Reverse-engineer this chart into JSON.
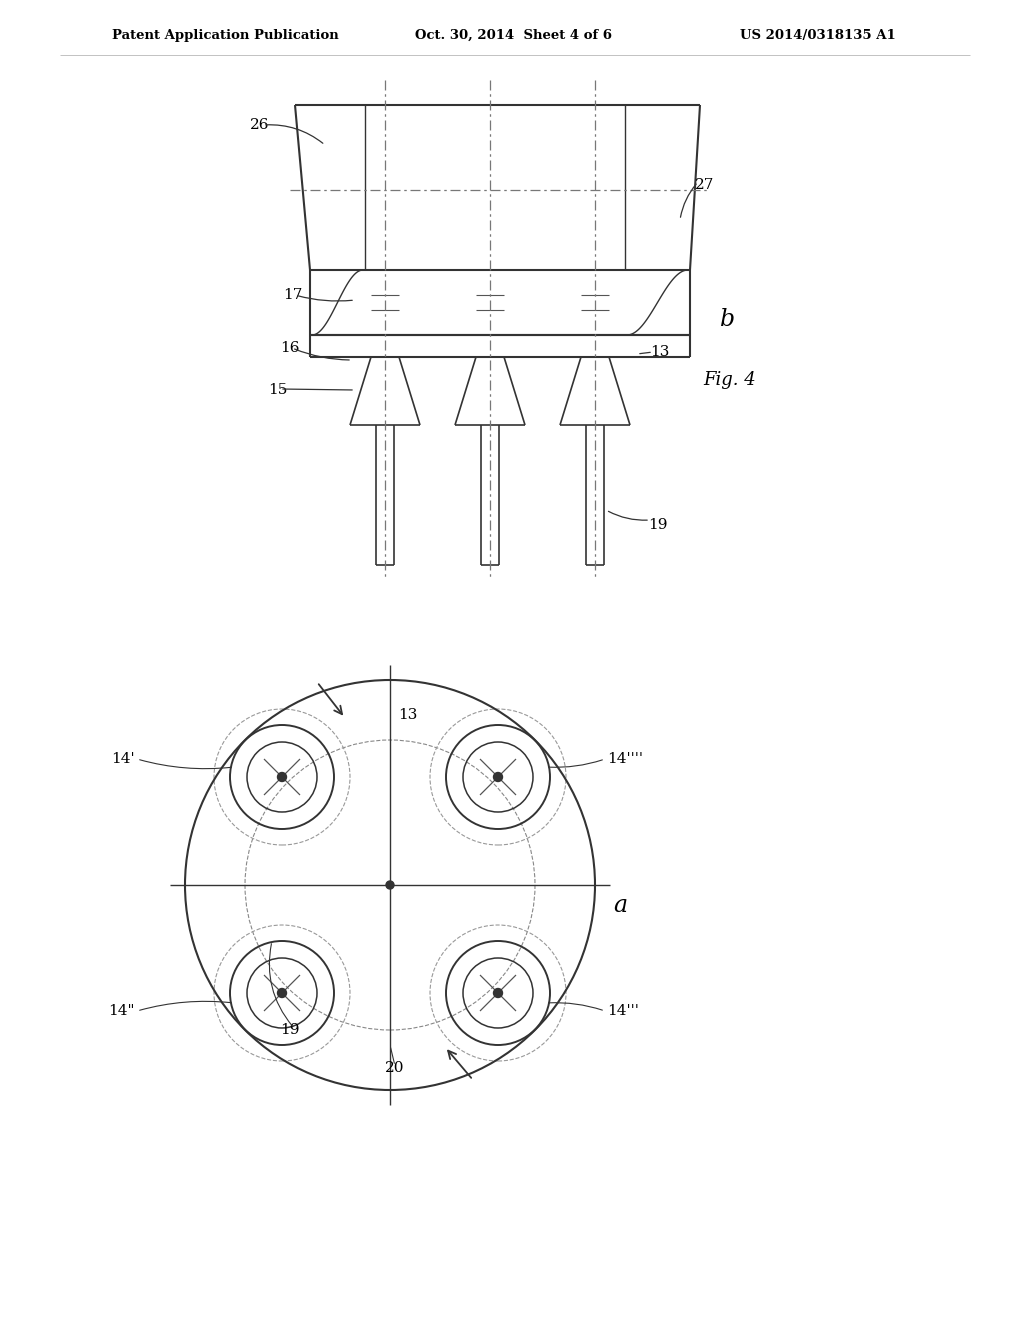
{
  "bg_color": "#ffffff",
  "header_text": "Patent Application Publication",
  "header_date": "Oct. 30, 2014  Sheet 4 of 6",
  "header_patent": "US 2014/0318135 A1",
  "line_color": "#333333",
  "dash_color": "#666666"
}
